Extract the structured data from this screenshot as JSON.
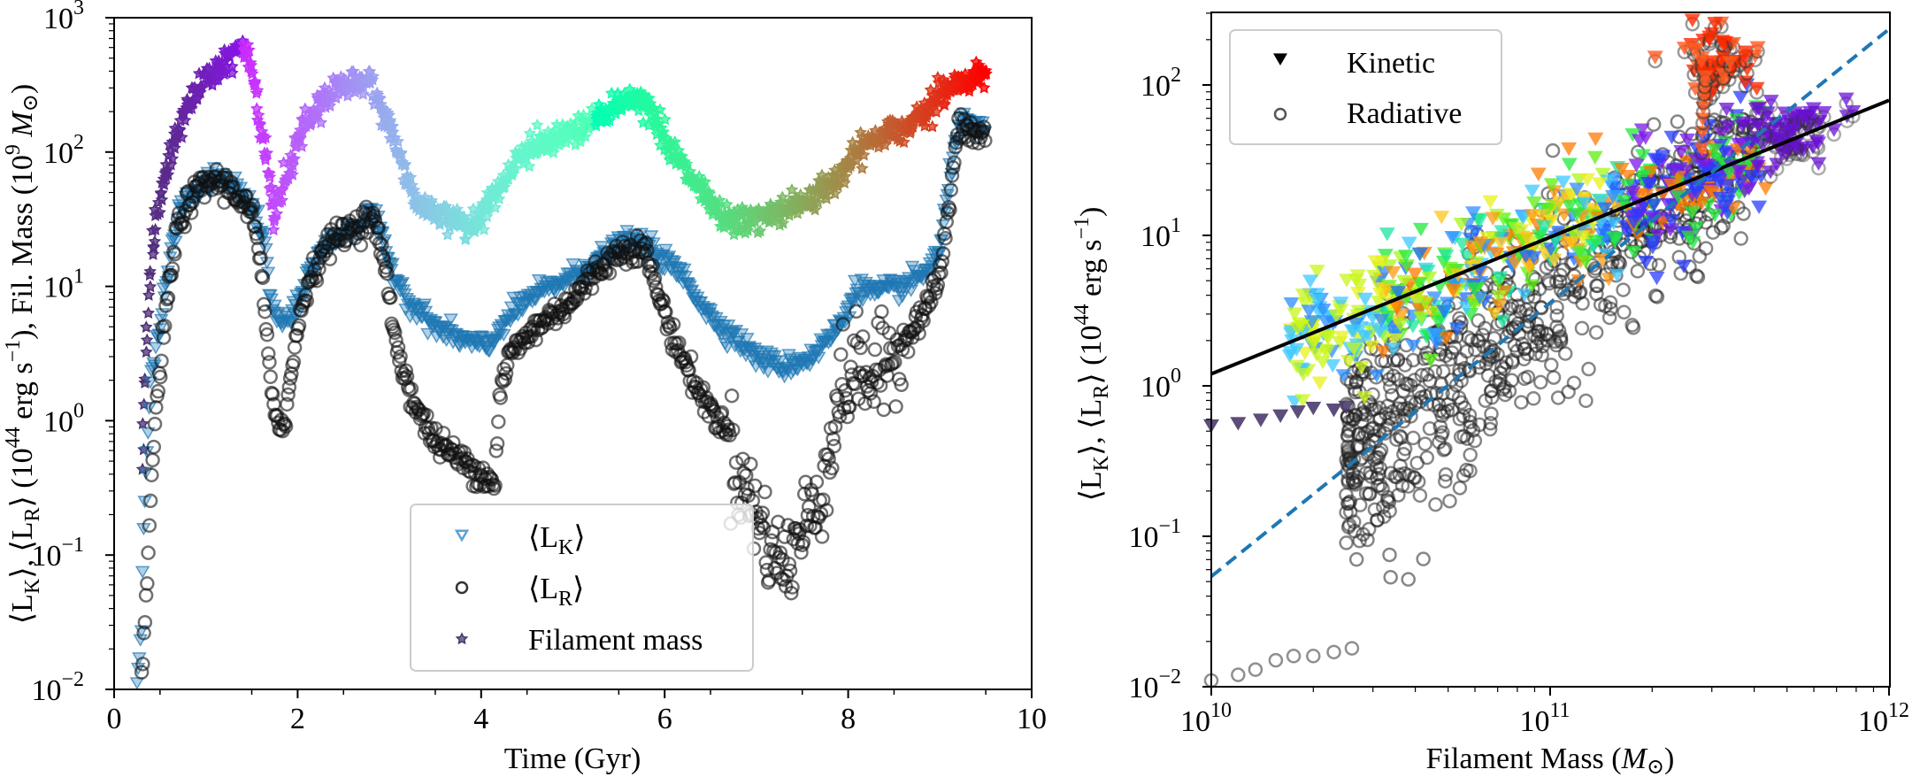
{
  "chart_data": [
    {
      "type": "scatter",
      "panel": "left",
      "xlabel": "Time (Gyr)",
      "ylabel": "⟨L_K⟩, ⟨L_R⟩ (10^44 erg s^-1), Fil. Mass (10^9 M_⊙)",
      "ylabel_parts": {
        "a": "⟨L",
        "aSub": "K",
        "b": "⟩, ⟨L",
        "bSub": "R",
        "c": "⟩ (10",
        "cSup": "44",
        "d": " erg s",
        "dSup": "−1",
        "e": "), Fil. Mass (10",
        "eSup": "9",
        "f": " M",
        "g": "⊙",
        "h": ")"
      },
      "xlim": [
        0,
        10
      ],
      "ylim": [
        0.01,
        1000
      ],
      "yscale": "log",
      "xticks": [
        0,
        2,
        4,
        6,
        8,
        10
      ],
      "xtick_labels": [
        "0",
        "2",
        "4",
        "6",
        "8",
        "10"
      ],
      "yticks": [
        0.01,
        0.1,
        1,
        10,
        100,
        1000
      ],
      "ytick_labels": [
        {
          "base": "10",
          "exp": "−2"
        },
        {
          "base": "10",
          "exp": "−1"
        },
        {
          "base": "10",
          "exp": "0"
        },
        {
          "base": "10",
          "exp": "1"
        },
        {
          "base": "10",
          "exp": "2"
        },
        {
          "base": "10",
          "exp": "3"
        }
      ],
      "legend": {
        "placement": "lower-center",
        "entries": [
          {
            "label": "⟨L",
            "sub": "K",
            "close": "⟩",
            "marker": "triangle-down-open",
            "color": "#5ba3d6"
          },
          {
            "label": "⟨L",
            "sub": "R",
            "close": "⟩",
            "marker": "circle-open",
            "color": "#333333"
          },
          {
            "label": "Filament mass",
            "sub": "",
            "close": "",
            "marker": "star",
            "color": "#4a3a6a"
          }
        ]
      },
      "series": [
        {
          "name": "Filament mass",
          "marker": "star",
          "colormap": "rainbow-by-time",
          "points": [
            [
              0.3,
              0.45
            ],
            [
              0.35,
              4
            ],
            [
              0.4,
              12
            ],
            [
              0.45,
              30
            ],
            [
              0.55,
              70
            ],
            [
              0.7,
              150
            ],
            [
              0.85,
              250
            ],
            [
              1.0,
              350
            ],
            [
              1.2,
              460
            ],
            [
              1.4,
              580
            ],
            [
              1.45,
              560
            ],
            [
              1.55,
              300
            ],
            [
              1.6,
              150
            ],
            [
              1.7,
              60
            ],
            [
              1.75,
              30
            ],
            [
              1.8,
              45
            ],
            [
              1.9,
              70
            ],
            [
              2.0,
              120
            ],
            [
              2.2,
              210
            ],
            [
              2.4,
              300
            ],
            [
              2.6,
              330
            ],
            [
              2.8,
              320
            ],
            [
              2.9,
              220
            ],
            [
              3.0,
              160
            ],
            [
              3.1,
              100
            ],
            [
              3.2,
              65
            ],
            [
              3.3,
              40
            ],
            [
              3.5,
              35
            ],
            [
              3.7,
              32
            ],
            [
              3.9,
              28
            ],
            [
              4.0,
              35
            ],
            [
              4.2,
              55
            ],
            [
              4.4,
              90
            ],
            [
              4.6,
              110
            ],
            [
              4.8,
              120
            ],
            [
              5.0,
              140
            ],
            [
              5.2,
              170
            ],
            [
              5.5,
              230
            ],
            [
              5.7,
              260
            ],
            [
              5.9,
              180
            ],
            [
              6.1,
              100
            ],
            [
              6.3,
              60
            ],
            [
              6.5,
              40
            ],
            [
              6.7,
              30
            ],
            [
              7.0,
              32
            ],
            [
              7.3,
              38
            ],
            [
              7.6,
              45
            ],
            [
              7.9,
              65
            ],
            [
              8.1,
              100
            ],
            [
              8.3,
              130
            ],
            [
              8.6,
              150
            ],
            [
              8.8,
              200
            ],
            [
              9.0,
              270
            ],
            [
              9.2,
              320
            ],
            [
              9.5,
              400
            ]
          ]
        },
        {
          "name": "⟨L_K⟩",
          "marker": "triangle-down-open",
          "color": "#1f77b4",
          "points": [
            [
              0.25,
              0.012
            ],
            [
              0.3,
              0.03
            ],
            [
              0.32,
              0.15
            ],
            [
              0.35,
              0.5
            ],
            [
              0.4,
              2
            ],
            [
              0.5,
              5
            ],
            [
              0.6,
              15
            ],
            [
              0.7,
              35
            ],
            [
              0.8,
              45
            ],
            [
              0.9,
              50
            ],
            [
              1.0,
              58
            ],
            [
              1.1,
              65
            ],
            [
              1.3,
              55
            ],
            [
              1.5,
              40
            ],
            [
              1.65,
              20
            ],
            [
              1.7,
              8
            ],
            [
              1.8,
              5.5
            ],
            [
              1.9,
              5.5
            ],
            [
              2.0,
              7
            ],
            [
              2.1,
              12
            ],
            [
              2.3,
              20
            ],
            [
              2.5,
              25
            ],
            [
              2.7,
              30
            ],
            [
              2.8,
              35
            ],
            [
              2.9,
              25
            ],
            [
              3.0,
              15
            ],
            [
              3.2,
              8
            ],
            [
              3.5,
              5
            ],
            [
              3.8,
              4
            ],
            [
              4.1,
              3.5
            ],
            [
              4.2,
              5
            ],
            [
              4.5,
              8
            ],
            [
              5.0,
              12
            ],
            [
              5.5,
              20
            ],
            [
              5.7,
              22
            ],
            [
              5.9,
              18
            ],
            [
              6.2,
              12
            ],
            [
              6.5,
              6
            ],
            [
              6.8,
              4
            ],
            [
              7.0,
              3
            ],
            [
              7.3,
              2.5
            ],
            [
              7.6,
              3
            ],
            [
              7.9,
              5
            ],
            [
              8.1,
              10
            ],
            [
              8.3,
              9
            ],
            [
              8.6,
              10
            ],
            [
              8.8,
              12
            ],
            [
              9.0,
              18
            ],
            [
              9.1,
              60
            ],
            [
              9.2,
              170
            ],
            [
              9.35,
              150
            ],
            [
              9.5,
              140
            ]
          ]
        },
        {
          "name": "⟨L_R⟩",
          "marker": "circle-open",
          "color": "#222222",
          "points": [
            [
              0.3,
              0.011
            ],
            [
              0.35,
              0.05
            ],
            [
              0.4,
              0.3
            ],
            [
              0.45,
              1
            ],
            [
              0.5,
              2.5
            ],
            [
              0.6,
              10
            ],
            [
              0.7,
              30
            ],
            [
              0.8,
              40
            ],
            [
              0.9,
              50
            ],
            [
              1.0,
              58
            ],
            [
              1.1,
              62
            ],
            [
              1.3,
              52
            ],
            [
              1.5,
              35
            ],
            [
              1.6,
              15
            ],
            [
              1.65,
              5
            ],
            [
              1.7,
              2
            ],
            [
              1.75,
              1.2
            ],
            [
              1.85,
              0.9
            ],
            [
              1.9,
              1.5
            ],
            [
              2.0,
              5
            ],
            [
              2.1,
              10
            ],
            [
              2.3,
              20
            ],
            [
              2.5,
              25
            ],
            [
              2.7,
              30
            ],
            [
              2.8,
              33
            ],
            [
              2.9,
              22
            ],
            [
              3.0,
              8
            ],
            [
              3.1,
              3
            ],
            [
              3.3,
              1.2
            ],
            [
              3.5,
              0.7
            ],
            [
              3.8,
              0.5
            ],
            [
              4.0,
              0.4
            ],
            [
              4.15,
              0.35
            ],
            [
              4.2,
              1.5
            ],
            [
              4.3,
              3
            ],
            [
              4.6,
              5
            ],
            [
              5.0,
              8
            ],
            [
              5.3,
              14
            ],
            [
              5.6,
              20
            ],
            [
              5.8,
              18
            ],
            [
              5.9,
              10
            ],
            [
              6.1,
              4
            ],
            [
              6.4,
              1.5
            ],
            [
              6.7,
              0.8
            ],
            [
              6.8,
              0.4
            ],
            [
              7.0,
              0.2
            ],
            [
              7.2,
              0.1
            ],
            [
              7.3,
              0.08
            ],
            [
              7.5,
              0.15
            ],
            [
              7.7,
              0.3
            ],
            [
              7.8,
              0.6
            ],
            [
              7.9,
              1.5
            ],
            [
              8.1,
              2.5
            ],
            [
              8.3,
              2
            ],
            [
              8.6,
              4
            ],
            [
              8.8,
              6
            ],
            [
              9.0,
              12
            ],
            [
              9.1,
              40
            ],
            [
              9.2,
              150
            ],
            [
              9.35,
              140
            ],
            [
              9.5,
              130
            ]
          ]
        }
      ]
    },
    {
      "type": "scatter",
      "panel": "right",
      "xlabel": "Filament Mass (M_⊙)",
      "xlabel_parts": {
        "a": "Filament Mass (",
        "b": "M",
        "c": "⊙",
        "d": ")"
      },
      "ylabel": "⟨L_K⟩, ⟨L_R⟩ (10^44 erg s^-1)",
      "ylabel_parts": {
        "a": "⟨L",
        "aSub": "K",
        "b": "⟩, ⟨L",
        "bSub": "R",
        "c": "⟩ (10",
        "cSup": "44",
        "d": " erg s",
        "dSup": "−1",
        "e": ")"
      },
      "xscale": "log",
      "yscale": "log",
      "xlim": [
        10000000000.0,
        1000000000000.0
      ],
      "ylim": [
        0.01,
        300
      ],
      "xticks": [
        10000000000.0,
        100000000000.0,
        1000000000000.0
      ],
      "xtick_labels": [
        {
          "base": "10",
          "exp": "10"
        },
        {
          "base": "10",
          "exp": "11"
        },
        {
          "base": "10",
          "exp": "12"
        }
      ],
      "yticks": [
        0.01,
        0.1,
        1,
        10,
        100
      ],
      "ytick_labels": [
        {
          "base": "10",
          "exp": "−2"
        },
        {
          "base": "10",
          "exp": "−1"
        },
        {
          "base": "10",
          "exp": "0"
        },
        {
          "base": "10",
          "exp": "1"
        },
        {
          "base": "10",
          "exp": "2"
        }
      ],
      "legend": {
        "placement": "top-left",
        "entries": [
          {
            "label": "Kinetic",
            "marker": "triangle-down-filled",
            "color": "#000000"
          },
          {
            "label": "Radiative",
            "marker": "circle-open",
            "color": "#555555"
          }
        ]
      },
      "fit_lines": [
        {
          "name": "kinetic-fit",
          "style": "solid",
          "color": "#000000",
          "x": [
            10000000000.0,
            1000000000000.0
          ],
          "y": [
            1.2,
            79
          ]
        },
        {
          "name": "radiative-fit",
          "style": "dashed",
          "color": "#1f77b4",
          "x": [
            10000000000.0,
            1000000000000.0
          ],
          "y": [
            0.054,
            235
          ]
        }
      ],
      "clusters": [
        {
          "name": "kinetic-early",
          "marker": "triangle-down-filled",
          "color": "#4b3a6b",
          "points": [
            [
              10000000000.0,
              0.55
            ],
            [
              12000000000.0,
              0.57
            ],
            [
              14000000000.0,
              0.6
            ],
            [
              16000000000.0,
              0.64
            ],
            [
              18000000000.0,
              0.68
            ],
            [
              20000000000.0,
              0.72
            ],
            [
              23000000000.0,
              0.7
            ],
            [
              25000000000.0,
              0.73
            ]
          ]
        },
        {
          "name": "radiative-early",
          "marker": "circle-open",
          "color": "#555555",
          "points": [
            [
              10000000000.0,
              0.011
            ],
            [
              12000000000.0,
              0.012
            ],
            [
              13500000000.0,
              0.013
            ],
            [
              15500000000.0,
              0.015
            ],
            [
              17500000000.0,
              0.016
            ],
            [
              20000000000.0,
              0.016
            ],
            [
              23000000000.0,
              0.017
            ],
            [
              26000000000.0,
              0.018
            ]
          ]
        }
      ],
      "scatter_regions": [
        {
          "name": "kinetic-main",
          "marker": "triangle-down-filled",
          "colormap": "rainbow",
          "x_range": [
            17000000000.0,
            450000000000.0
          ],
          "relation": "kinetic-fit",
          "scatter_dex": 0.18
        },
        {
          "name": "radiative-main",
          "marker": "circle-open",
          "color": "#333333",
          "x_range": [
            25000000000.0,
            400000000000.0
          ],
          "relation": "radiative-fit",
          "scatter_dex": 0.35
        },
        {
          "name": "kinetic-red-cluster",
          "marker": "triangle-down-filled",
          "color": "#ff2a00",
          "x_center": 310000000000.0,
          "y_center": 140,
          "spread": [
            0.06,
            0.12
          ]
        },
        {
          "name": "kinetic-purple-cluster",
          "marker": "triangle-down-filled",
          "color": "#6a1bd6",
          "x_center": 500000000000.0,
          "y_center": 50,
          "spread": [
            0.07,
            0.1
          ]
        }
      ]
    }
  ]
}
